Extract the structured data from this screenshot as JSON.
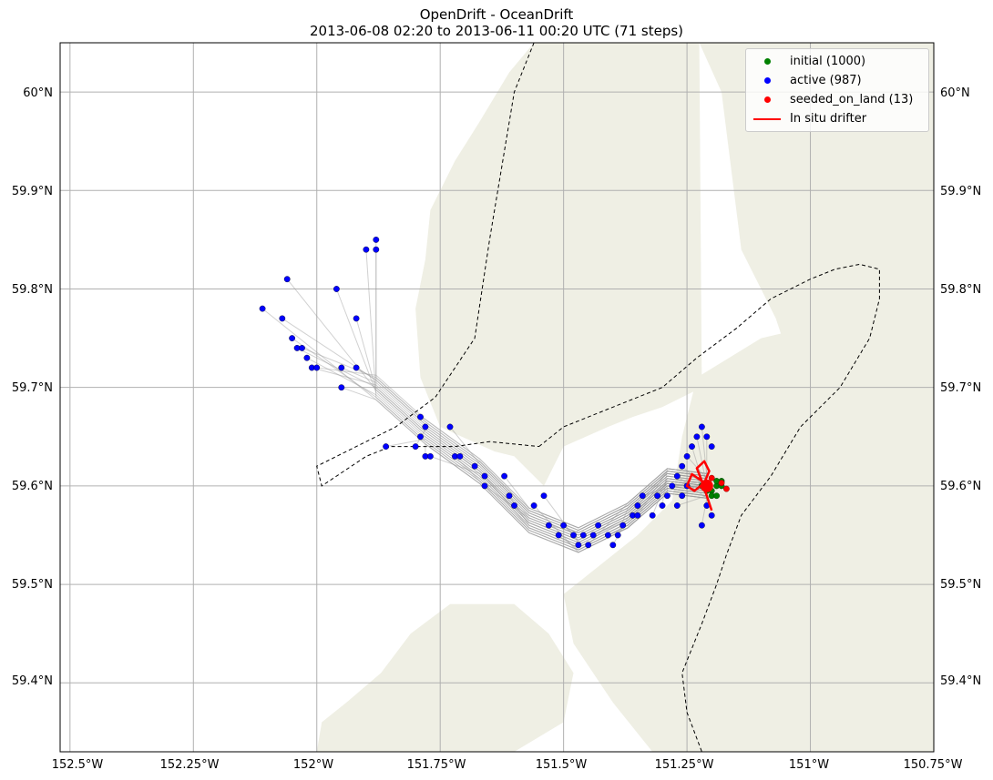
{
  "title": {
    "line1": "OpenDrift - OceanDrift",
    "line2": "2013-06-08 02:20 to 2013-06-11 00:20 UTC (71 steps)"
  },
  "colors": {
    "land": "#efefe4",
    "grid": "#b0b0b0",
    "trajectory": "#9a9a9a",
    "initial": "#008000",
    "active": "#0000ff",
    "seeded_on_land": "#ff0000",
    "drifter": "#ff0000"
  },
  "axes": {
    "lon_range": [
      -152.52,
      -150.75
    ],
    "lat_range": [
      59.33,
      60.05
    ],
    "lon_ticks": [
      -152.5,
      -152.25,
      -152.0,
      -151.75,
      -151.5,
      -151.25,
      -151.0,
      -150.75
    ],
    "lon_labels": [
      "152.5°W",
      "152.25°W",
      "152°W",
      "151.75°W",
      "151.5°W",
      "151.25°W",
      "151°W",
      "150.75°W"
    ],
    "lat_ticks": [
      60.0,
      59.9,
      59.8,
      59.7,
      59.6,
      59.5,
      59.4
    ],
    "lat_labels": [
      "60°N",
      "59.9°N",
      "59.8°N",
      "59.7°N",
      "59.6°N",
      "59.5°N",
      "59.4°N"
    ]
  },
  "legend": [
    {
      "label": "initial (1000)",
      "kind": "dot",
      "color": "#008000"
    },
    {
      "label": "active (987)",
      "kind": "dot",
      "color": "#0000ff"
    },
    {
      "label": "seeded_on_land (13)",
      "kind": "dot",
      "color": "#ff0000"
    },
    {
      "label": "In situ drifter",
      "kind": "line",
      "color": "#ff0000"
    }
  ],
  "map_layers": {
    "land": [
      [
        [
          -151.225,
          60.05
        ],
        [
          -150.75,
          60.05
        ],
        [
          -150.75,
          59.33
        ],
        [
          -151.32,
          59.33
        ],
        [
          -151.4,
          59.38
        ],
        [
          -151.48,
          59.44
        ],
        [
          -151.5,
          59.49
        ],
        [
          -151.45,
          59.51
        ],
        [
          -151.35,
          59.55
        ],
        [
          -151.28,
          59.585
        ],
        [
          -151.26,
          59.65
        ],
        [
          -151.23,
          59.71
        ],
        [
          -151.1,
          59.75
        ],
        [
          -150.93,
          59.77
        ],
        [
          -150.95,
          59.73
        ],
        [
          -151.06,
          59.69
        ],
        [
          -151.17,
          59.66
        ],
        [
          -151.19,
          59.59
        ],
        [
          -151.22,
          59.56
        ],
        [
          -151.19,
          59.62
        ],
        [
          -151.17,
          59.68
        ],
        [
          -151.1,
          59.71
        ],
        [
          -151.03,
          59.71
        ],
        [
          -151.07,
          59.77
        ],
        [
          -151.14,
          59.84
        ],
        [
          -151.18,
          60.0
        ]
      ],
      [
        [
          -151.49,
          60.05
        ],
        [
          -151.225,
          60.05
        ],
        [
          -151.22,
          59.7
        ],
        [
          -151.3,
          59.68
        ],
        [
          -151.36,
          59.67
        ],
        [
          -151.41,
          59.66
        ],
        [
          -151.5,
          59.64
        ],
        [
          -151.54,
          59.6
        ],
        [
          -151.6,
          59.63
        ],
        [
          -151.64,
          59.635
        ],
        [
          -151.75,
          59.66
        ],
        [
          -151.79,
          59.71
        ],
        [
          -151.8,
          59.78
        ],
        [
          -151.78,
          59.83
        ],
        [
          -151.77,
          59.88
        ],
        [
          -151.74,
          59.91
        ],
        [
          -151.72,
          59.93
        ],
        [
          -151.67,
          59.97
        ],
        [
          -151.61,
          60.02
        ],
        [
          -151.56,
          60.05
        ]
      ],
      [
        [
          -152.0,
          59.33
        ],
        [
          -151.6,
          59.33
        ],
        [
          -151.5,
          59.36
        ],
        [
          -151.48,
          59.41
        ],
        [
          -151.53,
          59.45
        ],
        [
          -151.6,
          59.48
        ],
        [
          -151.73,
          59.48
        ],
        [
          -151.81,
          59.45
        ],
        [
          -151.87,
          59.41
        ],
        [
          -151.94,
          59.38
        ],
        [
          -151.99,
          59.36
        ]
      ]
    ],
    "boundary": [
      [
        [
          -151.56,
          60.05
        ],
        [
          -151.6,
          60.0
        ],
        [
          -151.65,
          59.85
        ],
        [
          -151.68,
          59.75
        ],
        [
          -151.76,
          59.69
        ],
        [
          -151.84,
          59.66
        ],
        [
          -151.92,
          59.64
        ],
        [
          -152.0,
          59.62
        ],
        [
          -151.99,
          59.6
        ],
        [
          -151.9,
          59.63
        ],
        [
          -151.85,
          59.64
        ],
        [
          -151.77,
          59.64
        ],
        [
          -151.72,
          59.64
        ],
        [
          -151.65,
          59.645
        ],
        [
          -151.55,
          59.64
        ]
      ],
      [
        [
          -151.55,
          59.64
        ],
        [
          -151.5,
          59.66
        ],
        [
          -151.4,
          59.68
        ],
        [
          -151.3,
          59.7
        ],
        [
          -151.23,
          59.73
        ],
        [
          -151.15,
          59.76
        ],
        [
          -151.08,
          59.79
        ],
        [
          -151.0,
          59.81
        ],
        [
          -150.95,
          59.82
        ],
        [
          -150.9,
          59.825
        ],
        [
          -150.86,
          59.82
        ],
        [
          -150.86,
          59.79
        ],
        [
          -150.88,
          59.75
        ],
        [
          -150.94,
          59.7
        ],
        [
          -151.02,
          59.66
        ],
        [
          -151.08,
          59.61
        ],
        [
          -151.14,
          59.57
        ],
        [
          -151.17,
          59.53
        ],
        [
          -151.19,
          59.5
        ],
        [
          -151.22,
          59.46
        ],
        [
          -151.26,
          59.41
        ],
        [
          -151.25,
          59.37
        ],
        [
          -151.22,
          59.33
        ]
      ]
    ],
    "drifter_track": [
      [
        [
          -151.2,
          59.575
        ],
        [
          -151.21,
          59.59
        ],
        [
          -151.22,
          59.605
        ],
        [
          -151.24,
          59.612
        ],
        [
          -151.25,
          59.6
        ],
        [
          -151.235,
          59.595
        ],
        [
          -151.215,
          59.603
        ],
        [
          -151.205,
          59.615
        ],
        [
          -151.215,
          59.625
        ],
        [
          -151.23,
          59.618
        ],
        [
          -151.22,
          59.605
        ],
        [
          -151.21,
          59.6
        ]
      ]
    ]
  },
  "scatter": {
    "active_points": [
      [
        -152.11,
        59.78
      ],
      [
        -152.06,
        59.81
      ],
      [
        -152.07,
        59.77
      ],
      [
        -152.05,
        59.75
      ],
      [
        -152.04,
        59.74
      ],
      [
        -152.03,
        59.74
      ],
      [
        -152.02,
        59.73
      ],
      [
        -152.01,
        59.72
      ],
      [
        -152.0,
        59.72
      ],
      [
        -151.96,
        59.8
      ],
      [
        -151.95,
        59.72
      ],
      [
        -151.95,
        59.7
      ],
      [
        -151.92,
        59.77
      ],
      [
        -151.92,
        59.72
      ],
      [
        -151.9,
        59.84
      ],
      [
        -151.88,
        59.85
      ],
      [
        -151.88,
        59.84
      ],
      [
        -151.86,
        59.64
      ],
      [
        -151.8,
        59.64
      ],
      [
        -151.79,
        59.67
      ],
      [
        -151.79,
        59.65
      ],
      [
        -151.78,
        59.66
      ],
      [
        -151.78,
        59.63
      ],
      [
        -151.77,
        59.63
      ],
      [
        -151.73,
        59.66
      ],
      [
        -151.72,
        59.63
      ],
      [
        -151.71,
        59.63
      ],
      [
        -151.68,
        59.62
      ],
      [
        -151.66,
        59.61
      ],
      [
        -151.66,
        59.6
      ],
      [
        -151.62,
        59.61
      ],
      [
        -151.61,
        59.59
      ],
      [
        -151.6,
        59.58
      ],
      [
        -151.56,
        59.58
      ],
      [
        -151.54,
        59.59
      ],
      [
        -151.53,
        59.56
      ],
      [
        -151.51,
        59.55
      ],
      [
        -151.5,
        59.56
      ],
      [
        -151.48,
        59.55
      ],
      [
        -151.47,
        59.54
      ],
      [
        -151.46,
        59.55
      ],
      [
        -151.45,
        59.54
      ],
      [
        -151.44,
        59.55
      ],
      [
        -151.43,
        59.56
      ],
      [
        -151.41,
        59.55
      ],
      [
        -151.4,
        59.54
      ],
      [
        -151.39,
        59.55
      ],
      [
        -151.38,
        59.56
      ],
      [
        -151.36,
        59.57
      ],
      [
        -151.35,
        59.58
      ],
      [
        -151.34,
        59.59
      ],
      [
        -151.32,
        59.57
      ],
      [
        -151.3,
        59.58
      ],
      [
        -151.29,
        59.59
      ],
      [
        -151.28,
        59.6
      ],
      [
        -151.27,
        59.61
      ],
      [
        -151.26,
        59.62
      ],
      [
        -151.25,
        59.63
      ],
      [
        -151.24,
        59.64
      ],
      [
        -151.23,
        59.65
      ],
      [
        -151.22,
        59.66
      ],
      [
        -151.21,
        59.65
      ],
      [
        -151.2,
        59.64
      ],
      [
        -151.22,
        59.6
      ],
      [
        -151.21,
        59.58
      ],
      [
        -151.2,
        59.57
      ],
      [
        -151.22,
        59.56
      ],
      [
        -151.25,
        59.6
      ],
      [
        -151.26,
        59.59
      ],
      [
        -151.27,
        59.58
      ],
      [
        -151.31,
        59.59
      ],
      [
        -151.35,
        59.57
      ]
    ],
    "initial_points": [
      [
        -151.22,
        59.6
      ],
      [
        -151.21,
        59.6
      ],
      [
        -151.2,
        59.595
      ],
      [
        -151.19,
        59.6
      ],
      [
        -151.18,
        59.605
      ],
      [
        -151.2,
        59.59
      ],
      [
        -151.19,
        59.59
      ],
      [
        -151.21,
        59.595
      ],
      [
        -151.18,
        59.6
      ],
      [
        -151.19,
        59.605
      ]
    ],
    "land_points": [
      [
        -151.17,
        59.597
      ],
      [
        -151.18,
        59.603
      ],
      [
        -151.2,
        59.608
      ]
    ]
  }
}
